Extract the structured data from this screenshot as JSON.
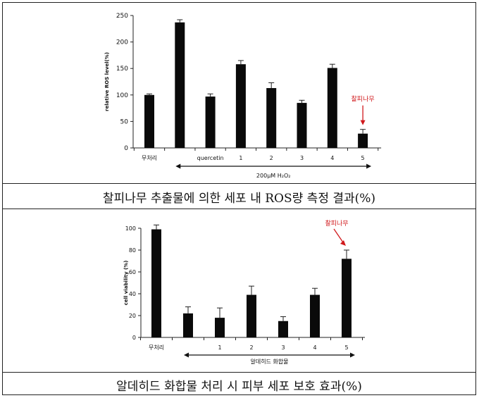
{
  "chart_data": [
    {
      "type": "bar",
      "ylabel": "relative ROS level(%)",
      "ylim": [
        0,
        250
      ],
      "yticks": [
        0,
        50,
        100,
        150,
        200,
        250
      ],
      "categories": [
        "무처리",
        "",
        "quercetin",
        "1",
        "2",
        "3",
        "4",
        "5"
      ],
      "values": [
        100,
        237,
        97,
        158,
        113,
        85,
        151,
        27
      ],
      "errors": [
        2,
        5,
        5,
        7,
        10,
        5,
        7,
        8
      ],
      "group_label": "200μM H₂O₂",
      "annotation": {
        "text": "찰피나무",
        "target_index": 7,
        "color": "#d0191c"
      },
      "grid": false
    },
    {
      "type": "bar",
      "ylabel": "cell viability (%)",
      "ylim": [
        0,
        100
      ],
      "yticks": [
        0,
        20,
        40,
        60,
        80,
        100
      ],
      "categories": [
        "무처리",
        "",
        "1",
        "2",
        "3",
        "4",
        "5"
      ],
      "values": [
        99,
        22,
        18,
        39,
        15,
        39,
        72
      ],
      "errors": [
        4,
        6,
        9,
        8,
        4,
        6,
        8
      ],
      "group_label": "알데히드 화합물",
      "annotation": {
        "text": "찰피나무",
        "target_index": 6,
        "color": "#d0191c"
      },
      "grid": false
    }
  ],
  "captions": {
    "top": "찰피나무 추출물에 의한 세포 내 ROS량 측정 결과(%)",
    "bottom": "알데히드 화합물 처리 시 피부 세포 보호 효과(%)"
  }
}
